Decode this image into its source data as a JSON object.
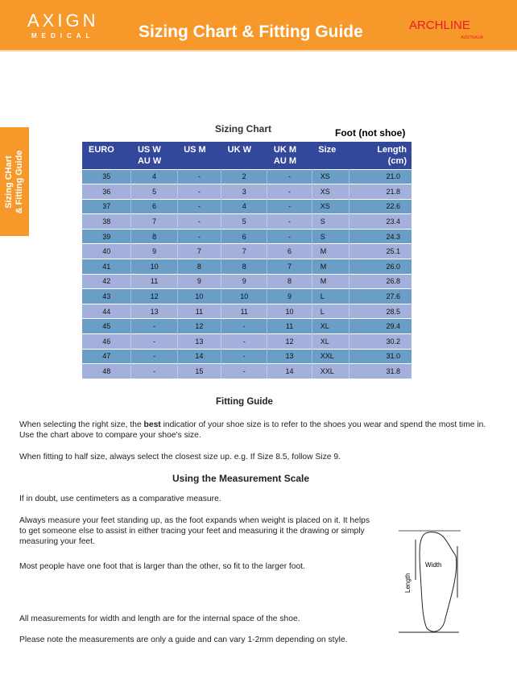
{
  "header": {
    "logo_brand": "AXIGN",
    "logo_sub": "MEDICAL",
    "title": "Sizing Chart & Fitting Guide",
    "partner_logo": "ARCHLINE",
    "partner_sub": "AUSTRALIA",
    "bg_color": "#f7982a"
  },
  "side_tab": {
    "line1": "Sizing CHart",
    "line2": "& Fitting Guide"
  },
  "chart": {
    "title": "Sizing Chart",
    "note": "Foot (not shoe)",
    "columns": [
      [
        "EURO"
      ],
      [
        "US W",
        "AU W"
      ],
      [
        "US M"
      ],
      [
        "UK W"
      ],
      [
        "UK M",
        "AU M"
      ],
      [
        "Size"
      ],
      [
        "Length",
        "(cm)"
      ]
    ],
    "rows": [
      [
        "35",
        "4",
        "-",
        "2",
        "-",
        "XS",
        "21.0"
      ],
      [
        "36",
        "5",
        "-",
        "3",
        "-",
        "XS",
        "21.8"
      ],
      [
        "37",
        "6",
        "-",
        "4",
        "-",
        "XS",
        "22.6"
      ],
      [
        "38",
        "7",
        "-",
        "5",
        "-",
        "S",
        "23.4"
      ],
      [
        "39",
        "8",
        "-",
        "6",
        "-",
        "S",
        "24.3"
      ],
      [
        "40",
        "9",
        "7",
        "7",
        "6",
        "M",
        "25.1"
      ],
      [
        "41",
        "10",
        "8",
        "8",
        "7",
        "M",
        "26.0"
      ],
      [
        "42",
        "11",
        "9",
        "9",
        "8",
        "M",
        "26.8"
      ],
      [
        "43",
        "12",
        "10",
        "10",
        "9",
        "L",
        "27.6"
      ],
      [
        "44",
        "13",
        "11",
        "11",
        "10",
        "L",
        "28.5"
      ],
      [
        "45",
        "-",
        "12",
        "-",
        "11",
        "XL",
        "29.4"
      ],
      [
        "46",
        "-",
        "13",
        "-",
        "12",
        "XL",
        "30.2"
      ],
      [
        "47",
        "-",
        "14",
        "-",
        "13",
        "XXL",
        "31.0"
      ],
      [
        "48",
        "-",
        "15",
        "-",
        "14",
        "XXL",
        "31.8"
      ]
    ]
  },
  "fitting": {
    "heading": "Fitting Guide",
    "p1a": "When selecting the right size, the ",
    "p1b": "best",
    "p1c": " indicatior of your shoe size is to refer to the shoes you wear and spend the most time in. Use the chart above to compare your shoe's size.",
    "p2": "When fitting to half size, always select the closest size up. e.g. If Size 8.5, follow Size 9."
  },
  "measure": {
    "heading": "Using the Measurement Scale",
    "p1": "If in doubt, use centimeters as a comparative measure.",
    "p2": "Always measure your feet standing up, as the foot expands when weight is placed on it. It helps to get someone else to assist in either tracing your feet and measuring it the drawing or simply measuring your feet.",
    "p3": "Most people have one foot that is larger than the other, so fit to the larger foot.",
    "p4": "All measurements for width and length are for the internal space of the shoe.",
    "p5": "Please note the measurements are only a guide and can vary 1-2mm depending on style.",
    "diagram_width": "Width",
    "diagram_length": "Length"
  }
}
